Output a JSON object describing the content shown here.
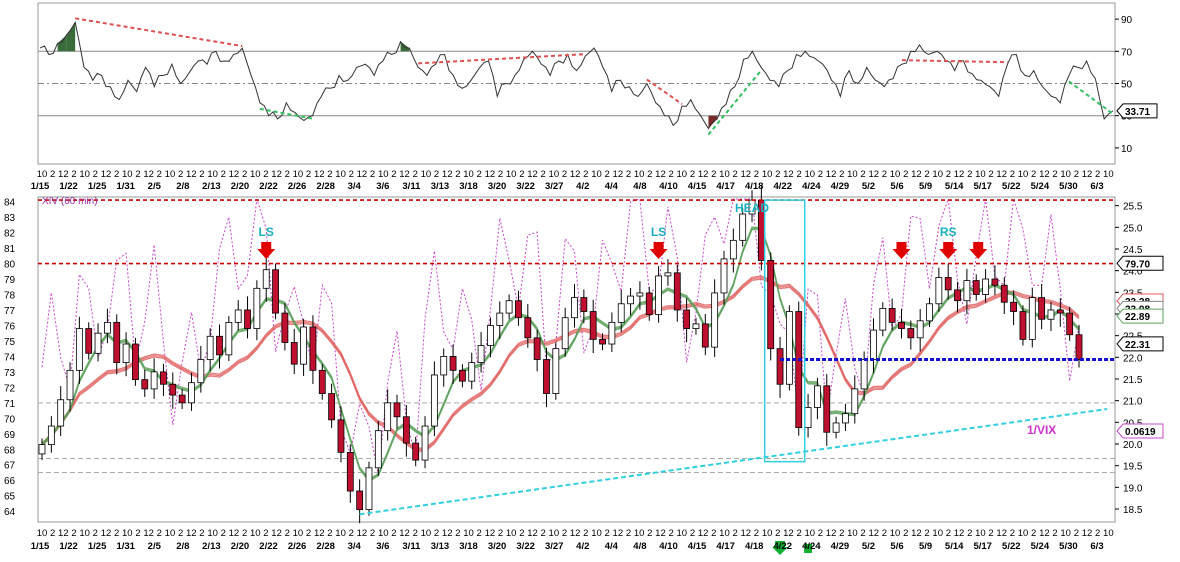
{
  "chart_data": [
    {
      "panel": "upper",
      "type": "line",
      "y_ticks": [
        10,
        30,
        50,
        70,
        90
      ],
      "ylim": [
        0,
        100
      ],
      "reference_lines": [
        30,
        50,
        70
      ],
      "last_value_label": "33.71",
      "series": [
        {
          "values": [
            72,
            68,
            75,
            80,
            88,
            60,
            52,
            55,
            48,
            40,
            52,
            45,
            60,
            48,
            55,
            62,
            50,
            57,
            64,
            62,
            70,
            64,
            68,
            72,
            55,
            38,
            30,
            28,
            38,
            32,
            27,
            30,
            42,
            47,
            55,
            52,
            60,
            62,
            55,
            64,
            68,
            76,
            72,
            60,
            55,
            62,
            68,
            55,
            47,
            52,
            60,
            64,
            42,
            50,
            55,
            65,
            70,
            62,
            55,
            64,
            68,
            58,
            67,
            72,
            60,
            45,
            52,
            48,
            42,
            50,
            38,
            30,
            24,
            36,
            40,
            31,
            22,
            28,
            37,
            48,
            65,
            70,
            60,
            52,
            48,
            58,
            68,
            70,
            66,
            62,
            52,
            42,
            58,
            50,
            60,
            52,
            48,
            53,
            62,
            70,
            74,
            68,
            70,
            64,
            58,
            64,
            56,
            52,
            48,
            42,
            62,
            68,
            55,
            58,
            48,
            42,
            38,
            55,
            60,
            64,
            53,
            28,
            33
          ]
        }
      ],
      "filled_segments": [
        {
          "color": "#3a6b3a",
          "label": "overbought"
        },
        {
          "color": "#7a2a2a",
          "label": "oversold"
        }
      ],
      "trend_lines": [
        {
          "kind": "divergence-top",
          "color": "#e05050"
        },
        {
          "kind": "divergence-bottom",
          "color": "#30c060"
        }
      ]
    },
    {
      "panel": "main",
      "type": "candlestick",
      "title": "XIV (60 min)",
      "left_axis_ticks": [
        64,
        65,
        66,
        67,
        68,
        69,
        70,
        71,
        72,
        73,
        74,
        75,
        76,
        77,
        78,
        79,
        80,
        81,
        82,
        83,
        84
      ],
      "ylim": [
        63.3,
        84.3
      ],
      "right_axis_ticks": [
        "18.5",
        "19.0",
        "19.5",
        "20.0",
        "20.5",
        "21.0",
        "21.5",
        "22.0",
        "22.5",
        "23.0",
        "23.5",
        "24.0",
        "24.5",
        "25.0",
        "25.5"
      ],
      "right_ylim": [
        18.2,
        25.7
      ],
      "x_hour_labels": [
        "10",
        "2",
        "12",
        "2",
        "10",
        "2",
        "12",
        "2",
        "10",
        "2",
        "12",
        "2",
        "10",
        "2",
        "12",
        "2",
        "10",
        "2",
        "12",
        "2",
        "10",
        "2",
        "12",
        "2",
        "10",
        "2",
        "12",
        "2",
        "10",
        "2",
        "12",
        "2",
        "10",
        "2",
        "12",
        "2",
        "10",
        "2",
        "12",
        "2",
        "10",
        "2",
        "12",
        "2",
        "10",
        "2",
        "12",
        "2",
        "10",
        "2",
        "12",
        "2",
        "10",
        "2",
        "12",
        "2",
        "10",
        "2",
        "12",
        "2",
        "10",
        "2",
        "12",
        "2",
        "10",
        "2",
        "12",
        "2",
        "10",
        "2",
        "12",
        "2",
        "10",
        "2",
        "12",
        "2",
        "10",
        "2",
        "12",
        "2",
        "10",
        "2",
        "12",
        "2",
        "10",
        "2",
        "12",
        "2",
        "10",
        "2",
        "12",
        "2",
        "10",
        "2",
        "12",
        "2",
        "10",
        "2",
        "12",
        "2",
        "10"
      ],
      "x_date_labels": [
        "1/15",
        "1/22",
        "1/25",
        "1/31",
        "2/5",
        "2/8",
        "2/13",
        "2/20",
        "2/22",
        "2/26",
        "2/28",
        "3/4",
        "3/6",
        "3/11",
        "3/13",
        "3/18",
        "3/20",
        "3/22",
        "3/27",
        "4/2",
        "4/4",
        "4/8",
        "4/10",
        "4/15",
        "4/17",
        "4/18",
        "4/22",
        "4/24",
        "4/29",
        "5/2",
        "5/6",
        "5/9",
        "5/14",
        "5/17",
        "5/22",
        "5/24",
        "5/30",
        "6/3"
      ],
      "closes": [
        68.3,
        69.5,
        71.2,
        73.1,
        75.8,
        74.2,
        75.5,
        76.2,
        73.6,
        74.8,
        72.5,
        71.9,
        73.0,
        72.2,
        71.5,
        71.0,
        72.3,
        73.8,
        75.3,
        74.1,
        76.2,
        77.0,
        75.8,
        78.4,
        79.6,
        76.8,
        74.9,
        73.5,
        75.9,
        73.1,
        71.6,
        69.9,
        67.8,
        65.3,
        64.1,
        66.8,
        69.2,
        71.0,
        70.1,
        68.4,
        67.3,
        69.5,
        72.8,
        74.0,
        73.1,
        72.4,
        73.6,
        74.7,
        76.0,
        76.8,
        77.6,
        76.5,
        75.2,
        73.8,
        71.6,
        74.5,
        76.5,
        77.8,
        76.9,
        75.1,
        74.8,
        76.2,
        77.4,
        77.9,
        78.1,
        76.7,
        79.2,
        79.4,
        77.0,
        75.8,
        76.1,
        74.6,
        78.1,
        80.3,
        81.5,
        83.2,
        84.1,
        80.2,
        74.5,
        72.2,
        76.9,
        69.4,
        70.7,
        72.1,
        69.1,
        69.7,
        70.3,
        71.9,
        73.8,
        75.7,
        77.1,
        76.2,
        75.8,
        75.2,
        76.3,
        77.4,
        79.1,
        78.3,
        77.6,
        78.9,
        78.0,
        79.0,
        78.6,
        77.5,
        76.9,
        75.1,
        77.8,
        76.4,
        77.0,
        76.8,
        75.4,
        73.8
      ],
      "lines": [
        {
          "kind": "support",
          "value": 80,
          "label": "79.70",
          "color": "#cc0000"
        },
        {
          "kind": "resistance",
          "value": 84.1,
          "color": "#cc0000"
        },
        {
          "kind": "neckline",
          "value": 73.8,
          "color": "#0000cc"
        },
        {
          "kind": "moving-average-short",
          "label": "23.28",
          "color": "#e06060"
        },
        {
          "kind": "moving-average-long",
          "label": "22.89",
          "color": "#60a060"
        },
        {
          "kind": "overlay",
          "label": "1/VIX",
          "value_label": "0.0619",
          "color": "#cc33cc"
        },
        {
          "kind": "overlay-right",
          "label": "22.31"
        },
        {
          "kind": "right-axis-tag",
          "label": "23.08"
        }
      ],
      "annotations": [
        {
          "text": "LS",
          "color": "#18b0c0"
        },
        {
          "text": "LS",
          "color": "#18b0c0"
        },
        {
          "text": "HEAD",
          "color": "#18b0c0"
        },
        {
          "text": "RS",
          "color": "#18b0c0"
        },
        {
          "text": "1/VIX",
          "color": "#cc33cc"
        }
      ]
    }
  ],
  "colors": {
    "up": "#ffffff",
    "down": "#c01030",
    "wick": "#000000",
    "grid": "#9a9a9a",
    "support": "#cc0000",
    "neckline": "#1010cc",
    "trendline": "#30d0e0",
    "overlay": "#cc44cc",
    "ma_fast": "#5aa05a",
    "ma_slow": "#e05a5a",
    "marker_red": "#e00000",
    "marker_green": "#10b030"
  }
}
